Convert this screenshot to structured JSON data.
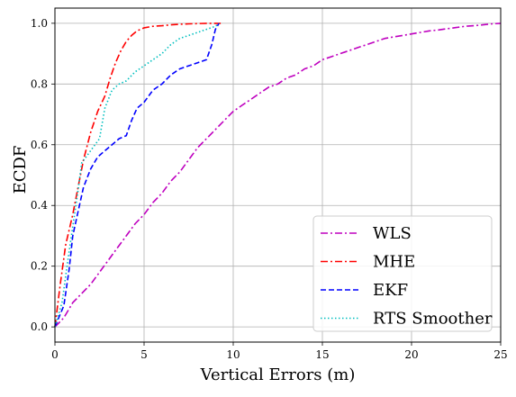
{
  "chart_data": {
    "type": "line",
    "xlabel": "Vertical Errors (m)",
    "ylabel": "ECDF",
    "xlim": [
      0,
      25
    ],
    "ylim": [
      -0.05,
      1.05
    ],
    "xticks": [
      0,
      5,
      10,
      15,
      20,
      25
    ],
    "yticks": [
      0.0,
      0.2,
      0.4,
      0.6,
      0.8,
      1.0
    ],
    "xtick_labels": [
      "0",
      "5",
      "10",
      "15",
      "20",
      "25"
    ],
    "ytick_labels": [
      "0.0",
      "0.2",
      "0.4",
      "0.6",
      "0.8",
      "1.0"
    ],
    "grid": true,
    "legend_position": "bottom-right",
    "series": [
      {
        "name": "WLS",
        "color": "#bf00bf",
        "style": "dashdot",
        "x": [
          0,
          0.5,
          1.0,
          1.5,
          2.0,
          2.5,
          3.0,
          3.5,
          4.0,
          4.5,
          5.0,
          5.5,
          6.0,
          6.5,
          7.0,
          7.5,
          8.0,
          8.5,
          9.0,
          9.5,
          10.0,
          10.5,
          11.0,
          11.5,
          12.0,
          12.5,
          13.0,
          13.5,
          14.0,
          14.5,
          15.0,
          15.5,
          16.0,
          16.5,
          17.0,
          17.5,
          18.0,
          18.5,
          19.0,
          19.5,
          20.0,
          20.5,
          21.0,
          21.5,
          22.0,
          22.5,
          23.0,
          23.5,
          24.0,
          24.5,
          25.0
        ],
        "y": [
          0.0,
          0.03,
          0.08,
          0.11,
          0.14,
          0.18,
          0.22,
          0.26,
          0.3,
          0.34,
          0.37,
          0.41,
          0.44,
          0.48,
          0.51,
          0.55,
          0.59,
          0.62,
          0.65,
          0.68,
          0.71,
          0.73,
          0.75,
          0.77,
          0.79,
          0.8,
          0.82,
          0.83,
          0.85,
          0.86,
          0.88,
          0.89,
          0.9,
          0.91,
          0.92,
          0.93,
          0.94,
          0.95,
          0.955,
          0.96,
          0.965,
          0.97,
          0.975,
          0.978,
          0.982,
          0.986,
          0.99,
          0.992,
          0.995,
          0.998,
          1.0
        ]
      },
      {
        "name": "MHE",
        "color": "#ff0000",
        "style": "dashdot",
        "x": [
          0,
          0.3,
          0.6,
          1.0,
          1.3,
          1.6,
          2.0,
          2.4,
          2.8,
          3.1,
          3.4,
          3.7,
          4.0,
          4.3,
          4.6,
          5.0,
          5.5,
          6.0,
          6.5,
          7.0,
          7.5,
          8.0,
          8.5,
          9.0,
          9.3
        ],
        "y": [
          0.0,
          0.14,
          0.27,
          0.37,
          0.46,
          0.55,
          0.64,
          0.71,
          0.76,
          0.82,
          0.87,
          0.91,
          0.94,
          0.96,
          0.975,
          0.985,
          0.99,
          0.992,
          0.995,
          0.997,
          0.998,
          0.999,
          1.0,
          1.0,
          1.0
        ]
      },
      {
        "name": "EKF",
        "color": "#0000ff",
        "style": "dashed",
        "x": [
          0,
          0.5,
          0.8,
          1.0,
          1.3,
          1.6,
          2.0,
          2.4,
          2.8,
          3.2,
          3.6,
          4.0,
          4.3,
          4.6,
          5.0,
          5.5,
          6.0,
          6.5,
          7.0,
          7.5,
          8.0,
          8.5,
          8.8,
          9.0,
          9.2
        ],
        "y": [
          0.0,
          0.07,
          0.19,
          0.3,
          0.38,
          0.46,
          0.52,
          0.56,
          0.58,
          0.6,
          0.62,
          0.63,
          0.68,
          0.72,
          0.74,
          0.78,
          0.8,
          0.83,
          0.85,
          0.86,
          0.87,
          0.88,
          0.93,
          0.98,
          1.0
        ]
      },
      {
        "name": "RTS Smoother",
        "color": "#00bfbf",
        "style": "dotted",
        "x": [
          0,
          0.4,
          0.7,
          1.0,
          1.3,
          1.5,
          2.0,
          2.5,
          2.8,
          3.2,
          3.6,
          4.0,
          4.5,
          5.0,
          5.5,
          6.0,
          6.5,
          7.0,
          7.5,
          8.0,
          8.5,
          9.0,
          9.2
        ],
        "y": [
          0.0,
          0.08,
          0.21,
          0.33,
          0.45,
          0.54,
          0.58,
          0.62,
          0.72,
          0.78,
          0.8,
          0.81,
          0.84,
          0.86,
          0.88,
          0.9,
          0.93,
          0.95,
          0.96,
          0.97,
          0.98,
          0.99,
          1.0
        ]
      }
    ]
  }
}
